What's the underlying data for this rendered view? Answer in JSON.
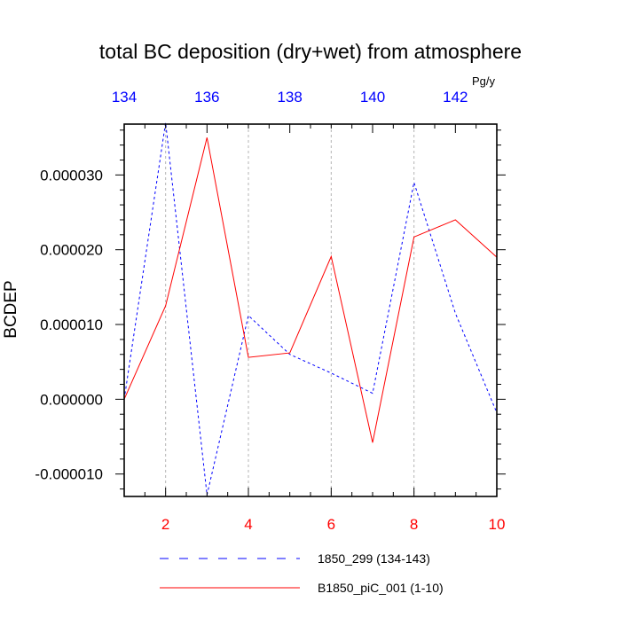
{
  "chart_data": {
    "type": "line",
    "title": "total BC deposition (dry+wet) from atmosphere",
    "ylabel": "BCDEP",
    "units": "Pg/y",
    "grid": "vertical dashed lines at major bottom-axis ticks",
    "legend_position": "bottom",
    "x_bottom": {
      "range": [
        1,
        10
      ],
      "ticks": [
        2,
        4,
        6,
        8,
        10
      ],
      "tick_labels": [
        "2",
        "4",
        "6",
        "8",
        "10"
      ],
      "color": "#ff0000"
    },
    "x_top": {
      "range": [
        134,
        143
      ],
      "ticks": [
        134,
        136,
        138,
        140,
        142
      ],
      "tick_labels": [
        "134",
        "136",
        "138",
        "140",
        "142"
      ],
      "color": "#0000ff"
    },
    "y": {
      "range": [
        -1.3e-05,
        3.68e-05
      ],
      "ticks": [
        -1e-05,
        0.0,
        1e-05,
        2e-05,
        3e-05
      ],
      "tick_labels": [
        "-0.000010",
        "0.000000",
        "0.000010",
        "0.000020",
        "0.000030"
      ]
    },
    "series": [
      {
        "name": "1850_299 (134-143)",
        "axis": "top",
        "color": "#0000ff",
        "style": "dashed",
        "x": [
          134,
          135,
          136,
          137,
          138,
          139,
          140,
          141,
          142,
          143
        ],
        "values": [
          0.0,
          3.7e-05,
          -1.28e-05,
          1.12e-05,
          6e-06,
          3.5e-06,
          8e-07,
          2.9e-05,
          1.15e-05,
          -1.8e-06
        ]
      },
      {
        "name": "B1850_piC_001 (1-10)",
        "axis": "bottom",
        "color": "#ff0000",
        "style": "solid",
        "x": [
          1,
          2,
          3,
          4,
          5,
          6,
          7,
          8,
          9,
          10
        ],
        "values": [
          0.0,
          1.25e-05,
          3.5e-05,
          5.6e-06,
          6.2e-06,
          1.91e-05,
          -5.8e-06,
          2.17e-05,
          2.4e-05,
          1.9e-05
        ]
      }
    ]
  }
}
